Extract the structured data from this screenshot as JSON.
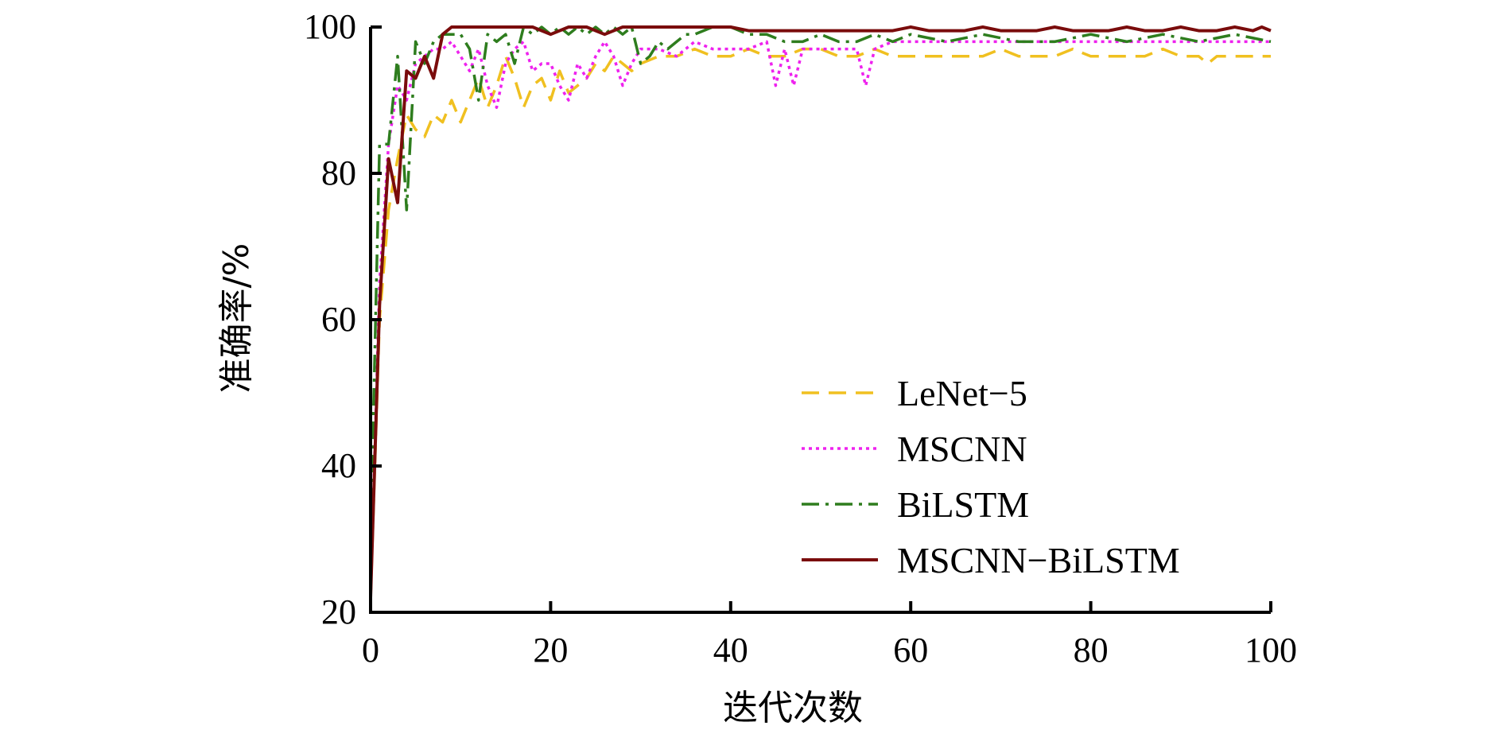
{
  "chart_data": {
    "type": "line",
    "title": "",
    "xlabel": "迭代次数",
    "ylabel": "准确率/%",
    "xlim": [
      0,
      100
    ],
    "ylim": [
      20,
      100
    ],
    "xticks": [
      0,
      20,
      40,
      60,
      80,
      100
    ],
    "yticks": [
      20,
      40,
      60,
      80,
      100
    ],
    "xtick_labels": [
      "0",
      "20",
      "40",
      "60",
      "80",
      "100"
    ],
    "ytick_labels": [
      "20",
      "40",
      "60",
      "80",
      "100"
    ],
    "grid": false,
    "legend": {
      "position": "lower-right"
    },
    "series": [
      {
        "name": "LeNet−5",
        "color": "#f0c020",
        "dash": "dashed",
        "x": [
          0,
          1,
          2,
          3,
          4,
          5,
          6,
          7,
          8,
          9,
          10,
          11,
          12,
          13,
          14,
          15,
          16,
          17,
          18,
          19,
          20,
          21,
          22,
          23,
          24,
          25,
          26,
          27,
          28,
          29,
          30,
          32,
          34,
          36,
          38,
          40,
          42,
          44,
          46,
          48,
          50,
          52,
          54,
          56,
          58,
          60,
          62,
          64,
          66,
          68,
          70,
          72,
          74,
          76,
          78,
          80,
          82,
          84,
          86,
          88,
          90,
          92,
          93,
          94,
          96,
          98,
          100
        ],
        "y": [
          22,
          60,
          75,
          82,
          88,
          86,
          85,
          88,
          87,
          90,
          87,
          90,
          93,
          89,
          92,
          96,
          93,
          89,
          92,
          93,
          90,
          94,
          91,
          92,
          93,
          95,
          94,
          96,
          95,
          94,
          95,
          96,
          96,
          97,
          96,
          96,
          97,
          96,
          96,
          97,
          97,
          96,
          96,
          97,
          96,
          96,
          96,
          96,
          96,
          96,
          97,
          96,
          96,
          96,
          97,
          96,
          96,
          96,
          96,
          97,
          96,
          96,
          95,
          96,
          96,
          96,
          96
        ]
      },
      {
        "name": "MSCNN",
        "color": "#ee22ee",
        "dash": "dotted",
        "x": [
          0,
          1,
          2,
          3,
          4,
          5,
          6,
          7,
          8,
          9,
          10,
          11,
          12,
          13,
          14,
          15,
          16,
          17,
          18,
          19,
          20,
          21,
          22,
          23,
          24,
          25,
          26,
          27,
          28,
          29,
          30,
          32,
          34,
          36,
          38,
          40,
          42,
          44,
          45,
          46,
          47,
          48,
          50,
          52,
          54,
          55,
          56,
          58,
          60,
          64,
          68,
          72,
          76,
          80,
          84,
          88,
          92,
          96,
          100
        ],
        "y": [
          22,
          65,
          84,
          92,
          90,
          95,
          96,
          97,
          97,
          98,
          96,
          94,
          97,
          92,
          89,
          95,
          97,
          98,
          94,
          95,
          95,
          92,
          90,
          95,
          93,
          96,
          98,
          96,
          92,
          95,
          97,
          97,
          96,
          98,
          97,
          97,
          97,
          98,
          92,
          97,
          92,
          97,
          97,
          97,
          97,
          92,
          97,
          98,
          98,
          98,
          98,
          98,
          98,
          98,
          98,
          98,
          98,
          98,
          98
        ]
      },
      {
        "name": "BiLSTM",
        "color": "#2e7d1e",
        "dash": "dashdot",
        "x": [
          0,
          1,
          2,
          3,
          4,
          5,
          6,
          7,
          8,
          9,
          10,
          11,
          12,
          13,
          14,
          15,
          16,
          17,
          18,
          19,
          20,
          21,
          22,
          23,
          24,
          25,
          26,
          27,
          28,
          29,
          30,
          31,
          32,
          33,
          34,
          35,
          36,
          38,
          40,
          42,
          44,
          46,
          48,
          50,
          52,
          54,
          56,
          58,
          60,
          64,
          68,
          72,
          76,
          80,
          84,
          88,
          92,
          96,
          100
        ],
        "y": [
          30,
          84,
          84,
          96,
          75,
          98,
          95,
          98,
          99,
          99,
          99,
          97,
          90,
          99,
          98,
          99,
          95,
          100,
          99,
          100,
          99,
          100,
          99,
          100,
          99,
          100,
          99,
          100,
          99,
          100,
          95,
          96,
          98,
          97,
          98,
          99,
          99,
          100,
          100,
          99,
          99,
          98,
          98,
          99,
          98,
          98,
          99,
          98,
          99,
          98,
          99,
          98,
          98,
          99,
          98,
          99,
          98,
          99,
          98
        ]
      },
      {
        "name": "MSCNN−BiLSTM",
        "color": "#7a0c0c",
        "dash": "solid",
        "x": [
          0,
          1,
          2,
          3,
          4,
          5,
          6,
          7,
          8,
          9,
          10,
          12,
          14,
          16,
          18,
          20,
          22,
          24,
          26,
          28,
          30,
          32,
          34,
          36,
          38,
          40,
          42,
          44,
          46,
          48,
          50,
          52,
          54,
          56,
          58,
          60,
          62,
          64,
          66,
          68,
          70,
          72,
          74,
          76,
          78,
          80,
          82,
          84,
          86,
          88,
          90,
          92,
          94,
          96,
          98,
          99,
          100
        ],
        "y": [
          22,
          62,
          82,
          76,
          94,
          93,
          96,
          93,
          99,
          100,
          100,
          100,
          100,
          100,
          100,
          99,
          100,
          100,
          99,
          100,
          100,
          100,
          100,
          100,
          100,
          100,
          99.5,
          99.5,
          99.5,
          99.5,
          99.5,
          99.5,
          99.5,
          99.5,
          99.5,
          100,
          99.5,
          99.5,
          99.5,
          100,
          99.5,
          99.5,
          99.5,
          100,
          99.5,
          99.5,
          99.5,
          100,
          99.5,
          99.5,
          100,
          99.5,
          99.5,
          100,
          99.5,
          100,
          99.5
        ]
      }
    ]
  }
}
